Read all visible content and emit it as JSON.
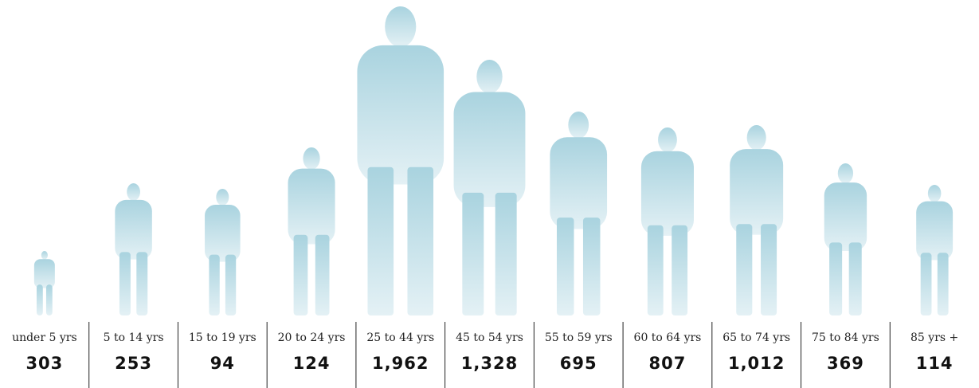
{
  "columns": [
    {
      "label": "under 5 yrs",
      "count": "303"
    },
    {
      "label": "5 to 14 yrs",
      "count": "253"
    },
    {
      "label": "15 to 19 yrs",
      "count": "94"
    },
    {
      "label": "20 to 24 yrs",
      "count": "124"
    },
    {
      "label": "25 to 44 yrs",
      "count": "1,962"
    },
    {
      "label": "45 to 54 yrs",
      "count": "1,328"
    },
    {
      "label": "55 to 59 yrs",
      "count": "695"
    },
    {
      "label": "60 to 64 yrs",
      "count": "807"
    },
    {
      "label": "65 to 74 yrs",
      "count": "1,012"
    },
    {
      "label": "75 to 84 yrs",
      "count": "369"
    },
    {
      "label": "85 yrs +",
      "count": "114"
    }
  ]
}
